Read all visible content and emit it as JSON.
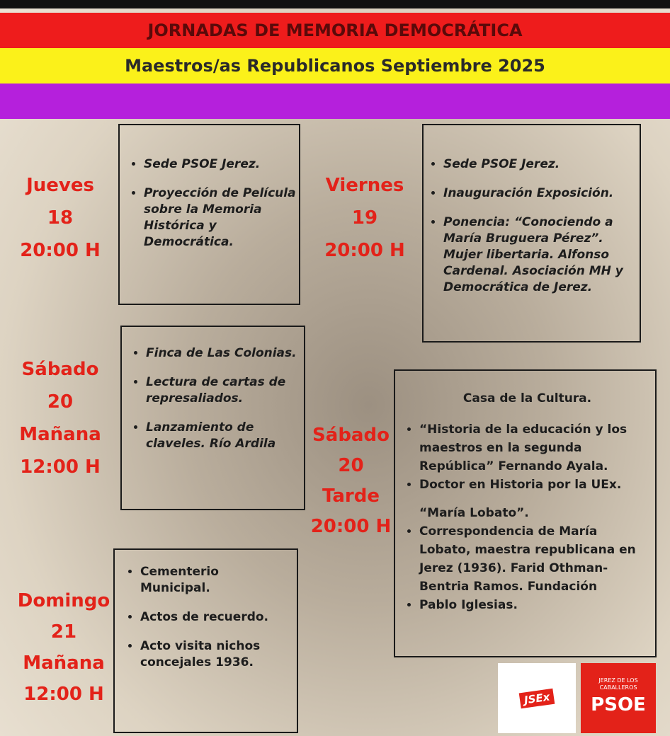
{
  "header": {
    "title": "JORNADAS DE MEMORIA DEMOCRÁTICA",
    "subtitle": "Maestros/as Republicanos Septiembre 2025"
  },
  "events": [
    {
      "day": [
        "Jueves",
        "18",
        "20:00 H"
      ],
      "items": [
        "Sede PSOE Jerez.",
        "Proyección de Película sobre la Memoria Histórica y Democrática."
      ]
    },
    {
      "day": [
        "Viernes",
        "19",
        "20:00 H"
      ],
      "items": [
        "Sede PSOE Jerez.",
        "Inauguración Exposición.",
        "Ponencia: “Conociendo a María Bruguera Pérez”. Mujer libertaria. Alfonso Cardenal. Asociación MH y Democrática de Jerez."
      ]
    },
    {
      "day": [
        "Sábado",
        "20",
        "Mañana",
        "12:00 H"
      ],
      "items": [
        "Finca de Las Colonias.",
        "Lectura de cartas de represaliados.",
        "Lanzamiento de claveles. Río Ardila"
      ]
    },
    {
      "day": [
        "Sábado",
        "20",
        "Tarde",
        "20:00 H"
      ],
      "heading": "Casa de la Cultura.",
      "items": [
        "“Historia de la educación y los maestros en la segunda República” Fernando Ayala.",
        "Doctor en Historia por la UEx."
      ],
      "subheading": "“María Lobato”.",
      "items2": [
        "Correspondencia de María Lobato, maestra republicana en Jerez (1936). Farid Othman-Bentria Ramos. Fundación",
        "Pablo Iglesias."
      ]
    },
    {
      "day": [
        "Domingo",
        "21",
        "Mañana",
        "12:00 H"
      ],
      "items": [
        "Cementerio Municipal.",
        "Actos de recuerdo.",
        "Acto visita nichos concejales 1936."
      ]
    }
  ],
  "logos": {
    "jsex": "JSEx",
    "psoe_place": "JEREZ DE LOS CABALLEROS",
    "psoe": "PSOE"
  }
}
